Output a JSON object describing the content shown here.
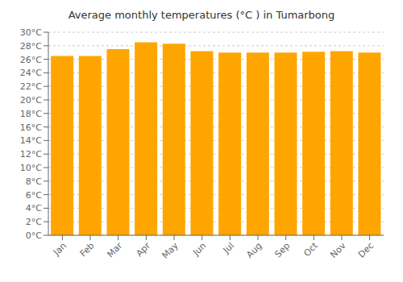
{
  "chart_data": {
    "type": "bar",
    "title": "Average monthly temperatures (°C ) in Tumarbong",
    "categories": [
      "Jan",
      "Feb",
      "Mar",
      "Apr",
      "May",
      "Jun",
      "Jul",
      "Aug",
      "Sep",
      "Oct",
      "Nov",
      "Dec"
    ],
    "values": [
      26.5,
      26.5,
      27.5,
      28.5,
      28.3,
      27.2,
      27.0,
      27.0,
      27.0,
      27.1,
      27.2,
      27.0
    ],
    "color": "#FFA500",
    "ylim": [
      0,
      30
    ],
    "yticks": [
      {
        "value": 0,
        "label": "0°C"
      },
      {
        "value": 2,
        "label": "2°C"
      },
      {
        "value": 4,
        "label": "4°C"
      },
      {
        "value": 6,
        "label": "6°C"
      },
      {
        "value": 8,
        "label": "8°C"
      },
      {
        "value": 10,
        "label": "10°C"
      },
      {
        "value": 12,
        "label": "12°C"
      },
      {
        "value": 14,
        "label": "14°C"
      },
      {
        "value": 16,
        "label": "16°C"
      },
      {
        "value": 18,
        "label": "18°C"
      },
      {
        "value": 20,
        "label": "20°C"
      },
      {
        "value": 22,
        "label": "22°C"
      },
      {
        "value": 24,
        "label": "24°C"
      },
      {
        "value": 26,
        "label": "26°C"
      },
      {
        "value": 28,
        "label": "28°C"
      },
      {
        "value": 30,
        "label": "30°C"
      }
    ],
    "grid": true
  }
}
